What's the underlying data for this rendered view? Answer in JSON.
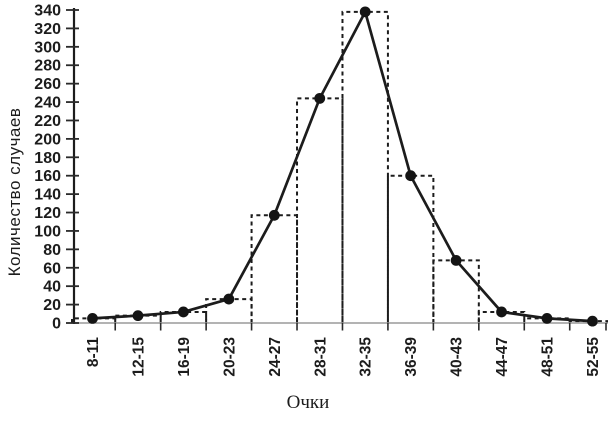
{
  "figure": {
    "background": "#ffffff"
  },
  "chart_data": {
    "type": "line",
    "subtype": "histogram-with-frequency-polygon",
    "title": "",
    "xlabel": "Очки",
    "ylabel": "Количество случаев",
    "categories": [
      "8-11",
      "12-15",
      "16-19",
      "20-23",
      "24-27",
      "28-31",
      "32-35",
      "36-39",
      "40-43",
      "44-47",
      "48-51",
      "52-55"
    ],
    "values": [
      5,
      8,
      12,
      26,
      117,
      244,
      338,
      160,
      68,
      12,
      5,
      2
    ],
    "series": [
      {
        "name": "histogram",
        "type": "bar",
        "line_style": "dashed-outline",
        "values": [
          5,
          8,
          12,
          26,
          117,
          244,
          338,
          160,
          68,
          12,
          5,
          2
        ]
      },
      {
        "name": "frequency-polygon",
        "type": "line",
        "line_style": "solid",
        "marker": "filled-circle",
        "values": [
          5,
          8,
          12,
          26,
          117,
          244,
          338,
          160,
          68,
          12,
          5,
          2
        ]
      }
    ],
    "ylim": [
      0,
      340
    ],
    "ytick_step": 20,
    "grid": false,
    "legend_position": "none",
    "colors": {
      "stroke": "#1c1c1c",
      "marker_fill": "#141414",
      "y_axis_line": "#1c1c1c",
      "x_axis_line": "#9a9a9a",
      "tick": "#2a2a2a",
      "background": "#ffffff"
    }
  }
}
